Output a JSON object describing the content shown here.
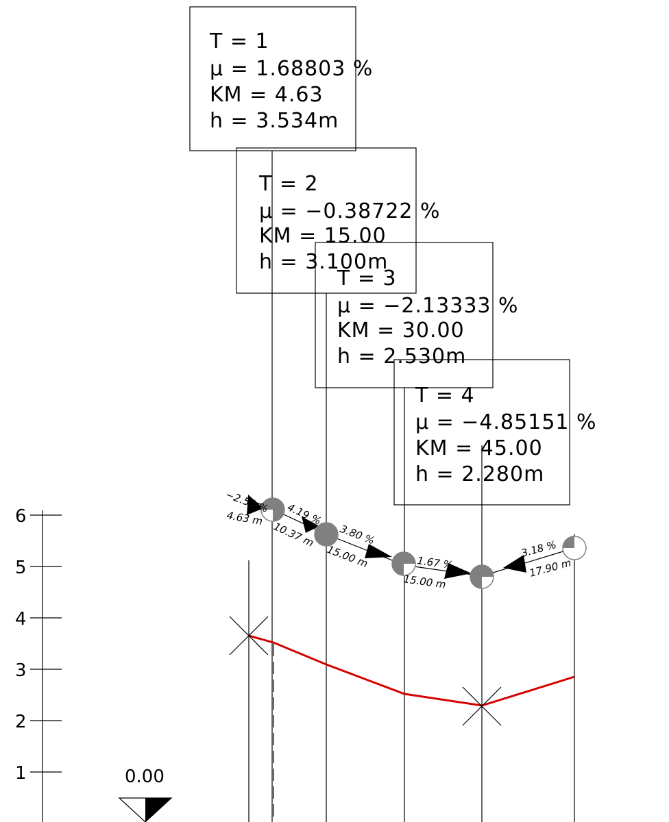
{
  "boxes": [
    {
      "t": "T = 1",
      "mu": "μ = 1.68803 %",
      "km": "KM = 4.63",
      "h": "h = 3.534m"
    },
    {
      "t": "T = 2",
      "mu": "μ = −0.38722 %",
      "km": "KM = 15.00",
      "h": "h = 3.100m"
    },
    {
      "t": "T = 3",
      "mu": "μ = −2.13333 %",
      "km": "KM = 30.00",
      "h": "h = 2.530m"
    },
    {
      "t": "T = 4",
      "mu": "μ = −4.85151 %",
      "km": "KM = 45.00",
      "h": "h = 2.280m"
    }
  ],
  "scale": {
    "ticks": [
      "6",
      "5",
      "4",
      "3",
      "2",
      "1"
    ]
  },
  "datum": {
    "label": "0.00"
  },
  "segments": [
    {
      "slope": "−2.50 %",
      "len": "4.63 m"
    },
    {
      "slope": "4.19 %",
      "len": "10.37 m"
    },
    {
      "slope": "3.80 %",
      "len": "15.00 m"
    },
    {
      "slope": "1.67 %",
      "len": "15.00 m"
    },
    {
      "slope": "3.18 %",
      "len": "17.90 m"
    }
  ],
  "colors": {
    "profile": "#d40000",
    "ink": "#000000",
    "node": "#808080"
  }
}
